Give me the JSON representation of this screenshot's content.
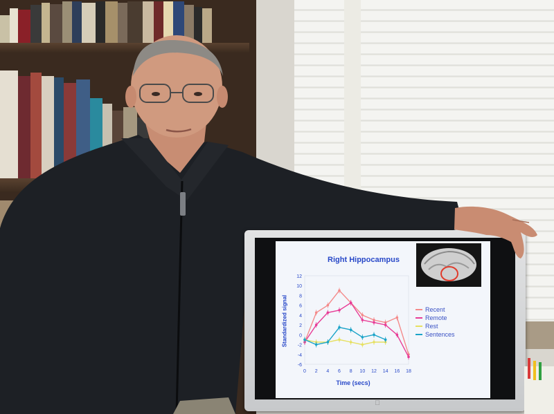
{
  "scene": {
    "description_objects": [
      "bookshelf",
      "window-blinds",
      "person",
      "monitor"
    ]
  },
  "monitor": {
    "brand_mark": ""
  },
  "chart_data": {
    "type": "line",
    "title": "Right Hippocampus",
    "xlabel": "Time (secs)",
    "ylabel": "Standardized signal",
    "x": [
      0,
      2,
      4,
      6,
      8,
      10,
      12,
      14,
      16,
      18
    ],
    "xlim": [
      0,
      18
    ],
    "ylim": [
      -6,
      12
    ],
    "yticks": [
      12,
      10,
      8,
      6,
      4,
      2,
      0,
      -2,
      -4,
      -6
    ],
    "xticks": [
      0,
      2,
      4,
      6,
      8,
      10,
      12,
      14,
      16,
      18
    ],
    "series": [
      {
        "name": "Recent",
        "color": "#f48a8a",
        "values": [
          -1.5,
          4.5,
          6,
          9,
          6.5,
          4,
          3,
          2.5,
          3.5,
          -4
        ]
      },
      {
        "name": "Remote",
        "color": "#e83c96",
        "values": [
          -1.5,
          2,
          4.5,
          5,
          6.5,
          3,
          2.5,
          2,
          0,
          -4.5
        ]
      },
      {
        "name": "Rest",
        "color": "#e6e060",
        "values": [
          -1,
          -1.5,
          -1.5,
          -1,
          -1.5,
          -2,
          -1.5,
          -1.5,
          null,
          null
        ]
      },
      {
        "name": "Sentences",
        "color": "#1aa3c8",
        "values": [
          -1,
          -2,
          -1.5,
          1.5,
          1,
          -0.5,
          0,
          -1,
          null,
          null
        ]
      }
    ],
    "legend_position": "right",
    "grid": false
  }
}
